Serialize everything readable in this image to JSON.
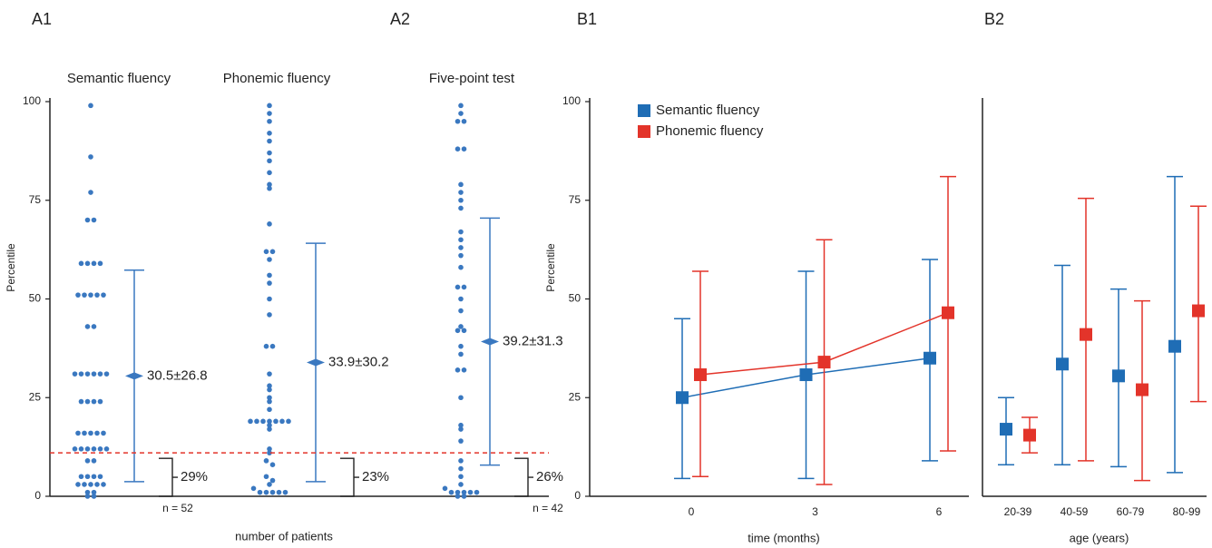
{
  "chart_data": [
    {
      "type": "strip",
      "panel_labels": [
        "A1",
        "A2"
      ],
      "ylabel": "Percentile",
      "xlabel": "number of patients",
      "ylim": [
        0,
        100
      ],
      "yticks": [
        0,
        25,
        50,
        75,
        100
      ],
      "threshold": 11,
      "color": "#3a78c0",
      "threshold_color": "#e3342a",
      "groups": [
        {
          "name": "Semantic fluency",
          "n_label": "n = 52",
          "mean": 30.5,
          "sd": 26.8,
          "value_label": "30.5±26.8",
          "below_label": "29%",
          "values": [
            99,
            86,
            77,
            70,
            70,
            59,
            59,
            59,
            59,
            51,
            51,
            51,
            51,
            51,
            43,
            43,
            31,
            31,
            31,
            31,
            31,
            31,
            24,
            24,
            24,
            24,
            16,
            16,
            16,
            16,
            16,
            12,
            12,
            12,
            12,
            12,
            12,
            9,
            9,
            5,
            5,
            5,
            5,
            3,
            3,
            3,
            3,
            3,
            1,
            1,
            0,
            0
          ]
        },
        {
          "name": "Phonemic fluency",
          "mean": 33.9,
          "sd": 30.2,
          "value_label": "33.9±30.2",
          "below_label": "23%",
          "values": [
            99,
            97,
            95,
            92,
            90,
            87,
            85,
            82,
            79,
            78,
            69,
            62,
            62,
            60,
            56,
            54,
            50,
            46,
            38,
            38,
            31,
            28,
            27,
            25,
            24,
            22,
            19,
            19,
            19,
            19,
            19,
            19,
            19,
            18,
            17,
            12,
            11,
            9,
            8,
            5,
            4,
            3,
            2,
            1,
            1,
            1,
            1,
            1
          ]
        },
        {
          "name": "Five-point test",
          "n_label": "n = 42",
          "mean": 39.2,
          "sd": 31.3,
          "value_label": "39.2±31.3",
          "below_label": "26%",
          "values": [
            99,
            97,
            95,
            95,
            88,
            88,
            79,
            77,
            75,
            73,
            67,
            65,
            63,
            61,
            58,
            53,
            53,
            50,
            47,
            43,
            42,
            42,
            38,
            36,
            32,
            32,
            25,
            18,
            17,
            14,
            9,
            7,
            5,
            3,
            2,
            1,
            1,
            1,
            1,
            1,
            0,
            0
          ]
        }
      ]
    },
    {
      "type": "errorbar",
      "panel_label": "B1",
      "ylabel": "Percentile",
      "xlabel": "time (months)",
      "legend": "top-left",
      "categories": [
        "0",
        "3",
        "6"
      ],
      "ylim": [
        0,
        100
      ],
      "yticks": [
        0,
        25,
        50,
        75,
        100
      ],
      "connect": true,
      "series": [
        {
          "name": "Semantic fluency",
          "color": "#1f6db5",
          "values": [
            25,
            30.8,
            35
          ],
          "lower": [
            4.5,
            4.5,
            9
          ],
          "upper": [
            45,
            57,
            60
          ]
        },
        {
          "name": "Phonemic fluency",
          "color": "#e3342a",
          "values": [
            30.8,
            34,
            46.5
          ],
          "lower": [
            5,
            3,
            11.5
          ],
          "upper": [
            57,
            65,
            81
          ]
        }
      ]
    },
    {
      "type": "errorbar",
      "panel_label": "B2",
      "xlabel": "age (years)",
      "categories": [
        "20-39",
        "40-59",
        "60-79",
        "80-99"
      ],
      "ylim": [
        0,
        100
      ],
      "connect": false,
      "series": [
        {
          "color": "#1f6db5",
          "values": [
            17,
            33.5,
            30.5,
            38
          ],
          "lower": [
            8,
            8,
            7.5,
            6
          ],
          "upper": [
            25,
            58.5,
            52.5,
            81
          ]
        },
        {
          "color": "#e3342a",
          "values": [
            15.5,
            41,
            27,
            47
          ],
          "lower": [
            11,
            9,
            4,
            24
          ],
          "upper": [
            20,
            75.5,
            49.5,
            73.5
          ]
        }
      ]
    }
  ]
}
